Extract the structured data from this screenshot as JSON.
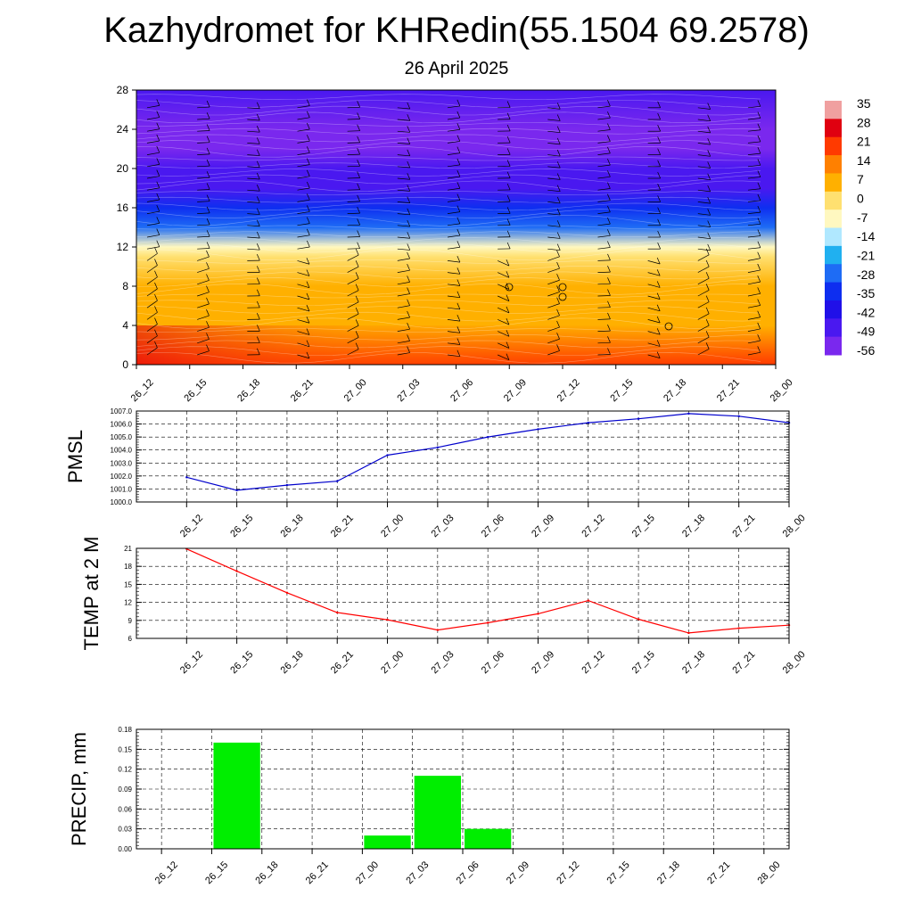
{
  "title": "Kazhydromet for KHRedin(55.1504 69.2578)",
  "subtitle": "26 April 2025",
  "chart_data": [
    {
      "type": "heatmap",
      "name": "vertical section",
      "xlabel": "",
      "ylabel": "",
      "x_ticks": [
        "26_12",
        "26_15",
        "26_18",
        "26_21",
        "27_00",
        "27_03",
        "27_06",
        "27_09",
        "27_12",
        "27_15",
        "27_18",
        "27_21",
        "28_00"
      ],
      "y_ticks": [
        0,
        4,
        8,
        12,
        16,
        20,
        24,
        28
      ],
      "ylim": [
        0,
        28
      ],
      "colorbar_labels": [
        "35",
        "28",
        "21",
        "14",
        "7",
        "0",
        "-7",
        "-14",
        "-21",
        "-28",
        "-35",
        "-42",
        "-49",
        "-56"
      ],
      "colorbar_colors": [
        "#f0a0a0",
        "#e00010",
        "#ff3a00",
        "#ff8000",
        "#ffb000",
        "#ffe070",
        "#fff8c0",
        "#b0e8ff",
        "#20b0f0",
        "#1e6cf5",
        "#0e2ef0",
        "#2010e8",
        "#4a18f0",
        "#7a28ee"
      ],
      "temperature_profile": [
        {
          "height": 0,
          "value": 20
        },
        {
          "height": 4,
          "value": 10
        },
        {
          "height": 8,
          "value": 5
        },
        {
          "height": 11,
          "value": 0
        },
        {
          "height": 12,
          "value": -10
        },
        {
          "height": 14,
          "value": -25
        },
        {
          "height": 16,
          "value": -38
        },
        {
          "height": 18,
          "value": -48
        },
        {
          "height": 20,
          "value": -52
        },
        {
          "height": 22,
          "value": -56
        },
        {
          "height": 24,
          "value": -54
        },
        {
          "height": 28,
          "value": -52
        }
      ]
    },
    {
      "type": "line",
      "name": "PMSL",
      "ylabel": "PMSL",
      "categories": [
        "26_12",
        "26_15",
        "26_18",
        "26_21",
        "27_00",
        "27_03",
        "27_06",
        "27_09",
        "27_12",
        "27_15",
        "27_18",
        "27_21",
        "28_00"
      ],
      "values": [
        1001.9,
        1000.9,
        1001.3,
        1001.6,
        1003.6,
        1004.2,
        1005.0,
        1005.6,
        1006.1,
        1006.4,
        1006.8,
        1006.6,
        1006.1
      ],
      "ylim": [
        1000.0,
        1007.0
      ],
      "y_ticks": [
        "1000.0",
        "1001.0",
        "1002.0",
        "1003.0",
        "1004.0",
        "1005.0",
        "1006.0",
        "1007.0"
      ],
      "color": "#0000cc",
      "grid": true
    },
    {
      "type": "line",
      "name": "TEMP at 2 M",
      "ylabel": "TEMP at 2 M",
      "categories": [
        "26_12",
        "26_15",
        "26_18",
        "26_21",
        "27_00",
        "27_03",
        "27_06",
        "27_09",
        "27_12",
        "27_15",
        "27_18",
        "27_21",
        "28_00"
      ],
      "values": [
        20.9,
        17.2,
        13.6,
        10.3,
        9.1,
        7.4,
        8.6,
        10.1,
        12.3,
        9.2,
        6.9,
        7.7,
        8.2
      ],
      "ylim": [
        6,
        21
      ],
      "y_ticks": [
        "6",
        "9",
        "12",
        "15",
        "18",
        "21"
      ],
      "color": "#ff0000",
      "grid": true
    },
    {
      "type": "bar",
      "name": "PRECIP, mm",
      "ylabel": "PRECIP, mm",
      "categories": [
        "26_12",
        "26_15",
        "26_18",
        "26_21",
        "27_00",
        "27_03",
        "27_06",
        "27_09",
        "27_12",
        "27_15",
        "27_18",
        "27_21",
        "28_00"
      ],
      "values": [
        0,
        0.16,
        0,
        0,
        0.02,
        0.11,
        0.03,
        0,
        0,
        0,
        0,
        0,
        0
      ],
      "ylim": [
        0,
        0.18
      ],
      "y_ticks": [
        "0.00",
        "0.03",
        "0.06",
        "0.09",
        "0.12",
        "0.15",
        "0.18"
      ],
      "color": "#00ee00",
      "grid": true
    }
  ]
}
